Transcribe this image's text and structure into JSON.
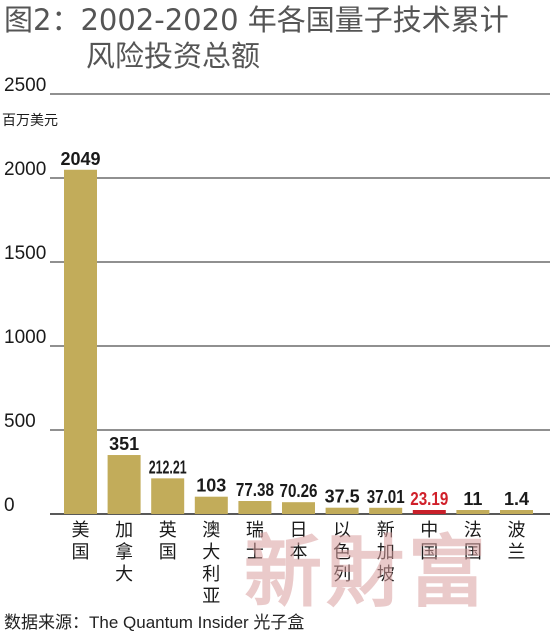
{
  "title_line1": "图2：2002-2020 年各国量子技术累计",
  "title_line2": "风险投资总额",
  "source": "数据来源：The Quantum Insider 光子盒",
  "watermark": "新財富",
  "colors": {
    "bar": "#c2ac5a",
    "highlight_bar": "#c8202a",
    "highlight_label": "#d0202a",
    "grid": "#222222",
    "text": "#1a1a1a"
  },
  "chart_data": {
    "type": "bar",
    "title": "图2：2002-2020 年各国量子技术累计风险投资总额",
    "ylabel": "百万美元",
    "ylim": [
      0,
      2500
    ],
    "yticks": [
      "0",
      "500",
      "1000",
      "1500",
      "2000",
      "2500"
    ],
    "grid": true,
    "categories": [
      "美国",
      "加拿大",
      "英国",
      "澳大利亚",
      "瑞士",
      "日本",
      "以色列",
      "新加坡",
      "中国",
      "法国",
      "波兰"
    ],
    "values": [
      2049,
      351,
      212.21,
      103,
      77.38,
      70.26,
      37.5,
      37.01,
      23.19,
      11,
      1.4
    ],
    "value_labels": [
      "2049",
      "351",
      "212.21",
      "103",
      "77.38",
      "70.26",
      "37.5",
      "37.01",
      "23.19",
      "11",
      "1.4"
    ],
    "highlight_category": "中国"
  }
}
